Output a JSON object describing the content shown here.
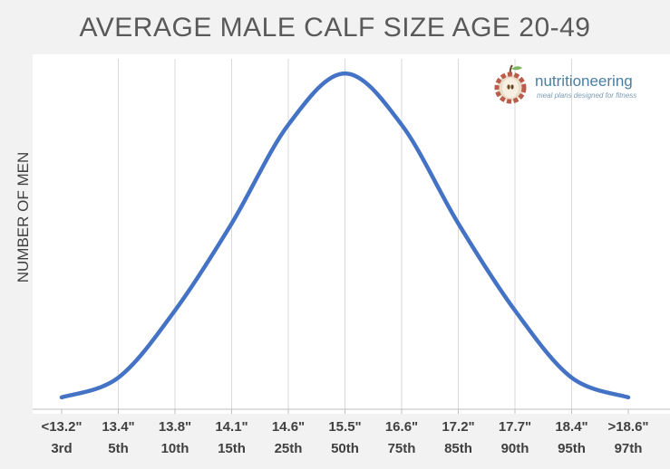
{
  "chart_data": {
    "type": "line",
    "title": "AVERAGE MALE CALF SIZE AGE 20-49",
    "ylabel": "NUMBER OF MEN",
    "xlabel": "",
    "categories": [
      {
        "size": "<13.2\"",
        "percentile": "3rd"
      },
      {
        "size": "13.4\"",
        "percentile": "5th"
      },
      {
        "size": "13.8\"",
        "percentile": "10th"
      },
      {
        "size": "14.1\"",
        "percentile": "15th"
      },
      {
        "size": "14.6\"",
        "percentile": "25th"
      },
      {
        "size": "15.5\"",
        "percentile": "50th"
      },
      {
        "size": "16.6\"",
        "percentile": "75th"
      },
      {
        "size": "17.2\"",
        "percentile": "85th"
      },
      {
        "size": "17.7\"",
        "percentile": "90th"
      },
      {
        "size": "18.4\"",
        "percentile": "95th"
      },
      {
        "size": ">18.6\"",
        "percentile": "97th"
      }
    ],
    "values": [
      3,
      8,
      25,
      47,
      72,
      85,
      72,
      47,
      25,
      8,
      3
    ],
    "ylim": [
      0,
      88
    ],
    "y_ticks_shown": false,
    "grid": "vertical",
    "line_color": "#4472c4"
  },
  "logo": {
    "name": "nutritioneering",
    "tagline": "meal plans designed for fitness"
  }
}
